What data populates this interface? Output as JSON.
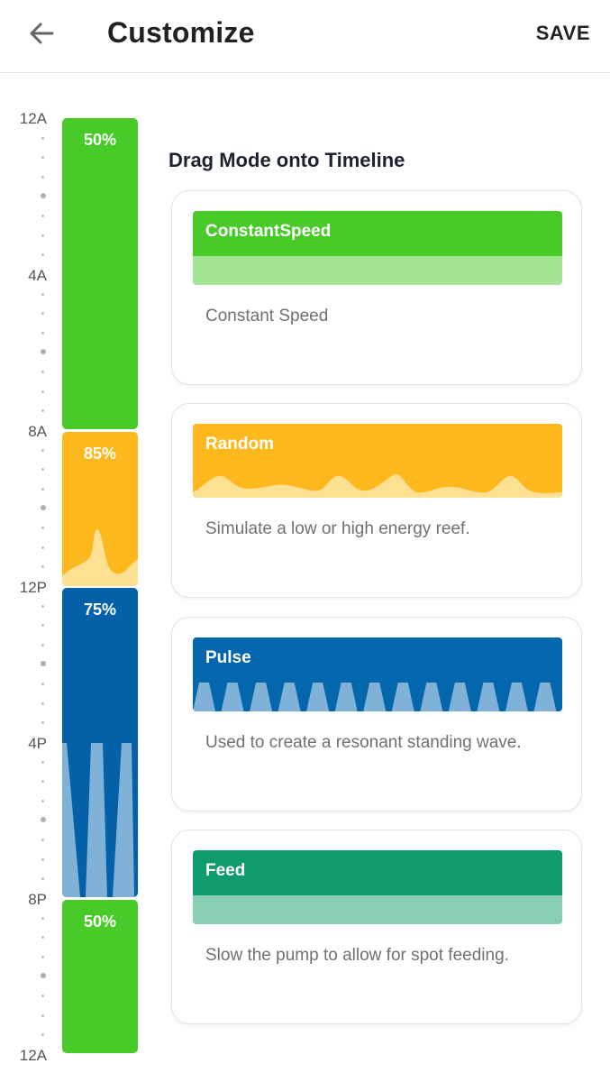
{
  "header": {
    "title": "Customize",
    "save_label": "SAVE",
    "back_icon": "arrow-left-icon"
  },
  "timeline": {
    "labels": [
      "12A",
      "4A",
      "8A",
      "12P",
      "4P",
      "8P",
      "12A"
    ],
    "blocks": [
      {
        "percent": "50%",
        "mode": "ConstantSpeed",
        "color": "#48cb28",
        "start": "12A",
        "end": "8A"
      },
      {
        "percent": "85%",
        "mode": "Random",
        "color": "#fdb81e",
        "start": "8A",
        "end": "12P"
      },
      {
        "percent": "75%",
        "mode": "Pulse",
        "color": "#0461a8",
        "start": "12P",
        "end": "8P"
      },
      {
        "percent": "50%",
        "mode": "ConstantSpeed",
        "color": "#48cb28",
        "start": "8P",
        "end": "12A"
      }
    ]
  },
  "section_title": "Drag Mode onto Timeline",
  "modes": [
    {
      "name": "ConstantSpeed",
      "description": "Constant Speed",
      "color": "#48cb28",
      "light_color": "#a4e595"
    },
    {
      "name": "Random",
      "description": "Simulate a low or high energy reef.",
      "color": "#fdb81e",
      "light_color": "#fde092"
    },
    {
      "name": "Pulse",
      "description": "Used to create a resonant standing wave.",
      "color": "#0467ad",
      "light_color": "#80b2d8"
    },
    {
      "name": "Feed",
      "description": "Slow the pump to allow for spot feeding.",
      "color": "#109b6c",
      "light_color": "#87ceb3"
    }
  ]
}
